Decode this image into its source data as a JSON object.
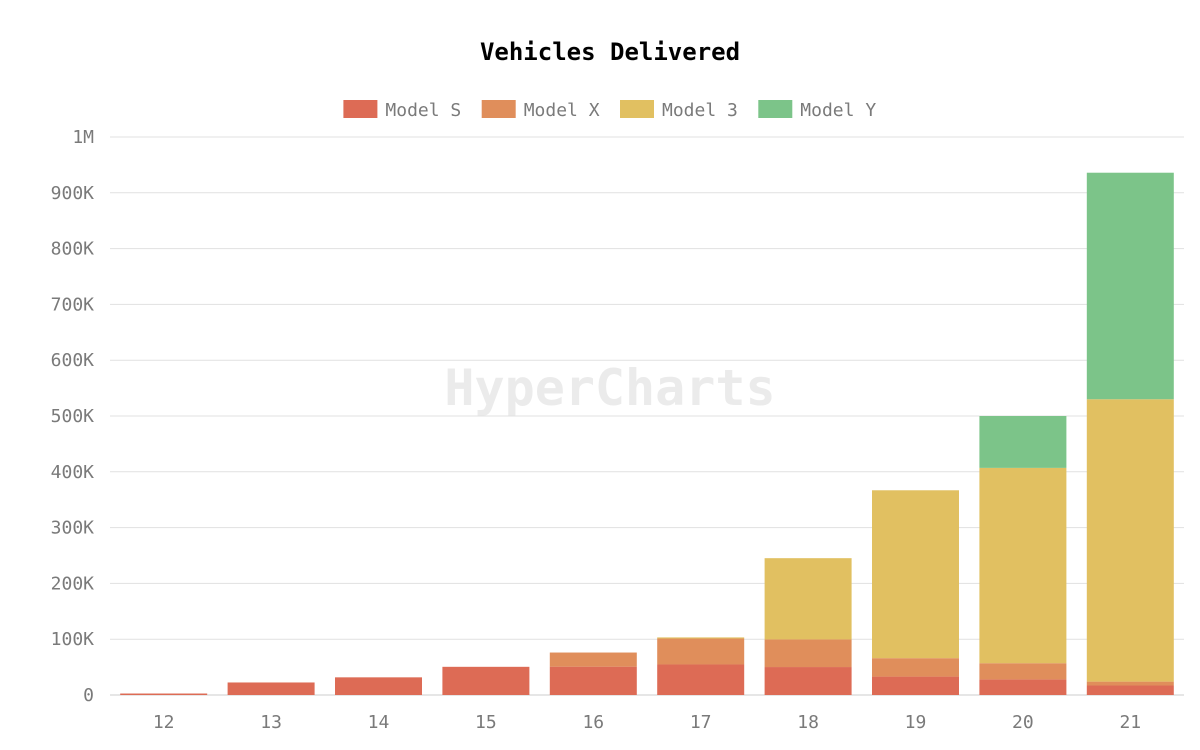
{
  "watermark": "HyperCharts",
  "chart_data": {
    "type": "bar",
    "stacked": true,
    "title": "Vehicles Delivered",
    "xlabel": "",
    "ylabel": "",
    "categories": [
      "12",
      "13",
      "14",
      "15",
      "16",
      "17",
      "18",
      "19",
      "20",
      "21"
    ],
    "ylim": [
      0,
      1000000
    ],
    "yticks": [
      0,
      100000,
      200000,
      300000,
      400000,
      500000,
      600000,
      700000,
      800000,
      900000,
      1000000
    ],
    "ytick_labels": [
      "0",
      "100K",
      "200K",
      "300K",
      "400K",
      "500K",
      "600K",
      "700K",
      "800K",
      "900K",
      "1M"
    ],
    "grid": true,
    "legend_position": "top-center",
    "series": [
      {
        "name": "Model S",
        "color": "#dd6b55",
        "values": [
          2650,
          22450,
          31650,
          50500,
          50800,
          54700,
          50100,
          33000,
          28000,
          17000
        ]
      },
      {
        "name": "Model X",
        "color": "#e08e5b",
        "values": [
          0,
          0,
          0,
          0,
          25300,
          46500,
          49500,
          33000,
          29000,
          7000
        ]
      },
      {
        "name": "Model 3",
        "color": "#e1c061",
        "values": [
          0,
          0,
          0,
          0,
          0,
          2000,
          145600,
          300900,
          350000,
          506000
        ]
      },
      {
        "name": "Model Y",
        "color": "#7cc489",
        "values": [
          0,
          0,
          0,
          0,
          0,
          0,
          0,
          0,
          93000,
          406000
        ]
      }
    ]
  }
}
